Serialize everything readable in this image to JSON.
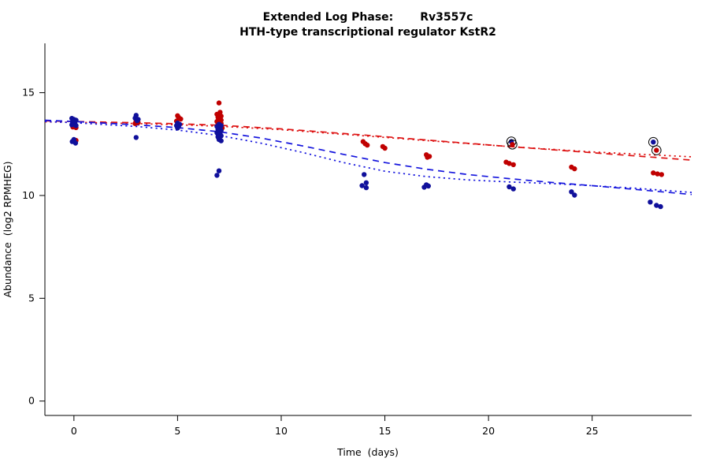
{
  "chart_data": {
    "type": "scatter",
    "title_part1": "Extended Log Phase:",
    "title_part2": "Rv3557c",
    "subtitle": "HTH-type transcriptional regulator KstR2",
    "xlabel": "Time  (days)",
    "ylabel": "Abundance  (log2 RPMHEG)",
    "xlim": [
      -1.4,
      29.8
    ],
    "ylim": [
      -0.7,
      17.4
    ],
    "xticks": [
      0,
      5,
      10,
      15,
      20,
      25
    ],
    "yticks": [
      0,
      5,
      10,
      15
    ],
    "grid": false,
    "legend": "none",
    "point_radius": 3.2,
    "series": [
      {
        "name": "red-condition",
        "color": "#c00000",
        "points": [
          [
            0.0,
            13.45
          ],
          [
            0.05,
            13.38
          ],
          [
            0.1,
            13.3
          ],
          [
            -0.05,
            13.33
          ],
          [
            0.1,
            12.68
          ],
          [
            3.0,
            13.62
          ],
          [
            3.1,
            13.55
          ],
          [
            2.95,
            13.5
          ],
          [
            5.0,
            13.88
          ],
          [
            5.05,
            13.8
          ],
          [
            5.15,
            13.72
          ],
          [
            4.95,
            13.62
          ],
          [
            7.0,
            14.5
          ],
          [
            7.05,
            14.05
          ],
          [
            6.9,
            13.95
          ],
          [
            7.0,
            13.9
          ],
          [
            7.1,
            13.86
          ],
          [
            6.95,
            13.8
          ],
          [
            7.05,
            13.76
          ],
          [
            7.0,
            13.7
          ],
          [
            7.1,
            13.66
          ],
          [
            6.9,
            13.6
          ],
          [
            7.0,
            13.56
          ],
          [
            7.1,
            13.5
          ],
          [
            6.95,
            13.46
          ],
          [
            7.05,
            13.42
          ],
          [
            7.0,
            13.35
          ],
          [
            7.15,
            13.28
          ],
          [
            13.95,
            12.62
          ],
          [
            14.05,
            12.52
          ],
          [
            14.15,
            12.45
          ],
          [
            14.9,
            12.38
          ],
          [
            15.0,
            12.3
          ],
          [
            17.0,
            11.98
          ],
          [
            17.15,
            11.9
          ],
          [
            17.05,
            11.86
          ],
          [
            20.85,
            11.62
          ],
          [
            21.0,
            11.56
          ],
          [
            21.2,
            11.5
          ],
          [
            24.0,
            11.38
          ],
          [
            24.15,
            11.3
          ],
          [
            27.95,
            11.1
          ],
          [
            28.15,
            11.05
          ],
          [
            28.35,
            11.02
          ]
        ]
      },
      {
        "name": "blue-condition",
        "color": "#10109b",
        "points": [
          [
            -0.1,
            13.75
          ],
          [
            0.0,
            13.7
          ],
          [
            0.1,
            13.66
          ],
          [
            -0.05,
            13.6
          ],
          [
            0.05,
            13.55
          ],
          [
            0.0,
            13.5
          ],
          [
            -0.1,
            13.44
          ],
          [
            0.1,
            13.4
          ],
          [
            0.0,
            12.72
          ],
          [
            -0.08,
            12.62
          ],
          [
            0.08,
            12.55
          ],
          [
            3.0,
            13.9
          ],
          [
            2.95,
            13.76
          ],
          [
            3.1,
            13.7
          ],
          [
            3.05,
            13.64
          ],
          [
            3.0,
            12.82
          ],
          [
            5.0,
            13.52
          ],
          [
            5.1,
            13.46
          ],
          [
            4.95,
            13.4
          ],
          [
            5.05,
            13.35
          ],
          [
            5.0,
            13.28
          ],
          [
            7.0,
            13.46
          ],
          [
            7.1,
            13.4
          ],
          [
            6.9,
            13.36
          ],
          [
            7.0,
            13.3
          ],
          [
            7.05,
            13.26
          ],
          [
            6.95,
            13.2
          ],
          [
            7.1,
            13.16
          ],
          [
            7.0,
            13.1
          ],
          [
            6.9,
            13.05
          ],
          [
            7.05,
            13.0
          ],
          [
            7.0,
            12.95
          ],
          [
            7.1,
            12.9
          ],
          [
            6.95,
            12.85
          ],
          [
            7.0,
            12.72
          ],
          [
            7.1,
            12.66
          ],
          [
            7.0,
            11.2
          ],
          [
            6.9,
            10.98
          ],
          [
            14.0,
            11.02
          ],
          [
            14.1,
            10.62
          ],
          [
            13.9,
            10.48
          ],
          [
            14.1,
            10.38
          ],
          [
            17.0,
            10.52
          ],
          [
            17.1,
            10.46
          ],
          [
            16.9,
            10.4
          ],
          [
            21.0,
            10.42
          ],
          [
            21.2,
            10.32
          ],
          [
            24.0,
            10.18
          ],
          [
            24.15,
            10.02
          ],
          [
            27.8,
            9.68
          ],
          [
            28.1,
            9.52
          ],
          [
            28.3,
            9.46
          ]
        ]
      }
    ],
    "outlined_points": [
      {
        "x": 21.1,
        "y": 12.62,
        "color": "#10109b"
      },
      {
        "x": 21.15,
        "y": 12.48,
        "color": "#c00000"
      },
      {
        "x": 27.95,
        "y": 12.6,
        "color": "#10109b"
      },
      {
        "x": 28.1,
        "y": 12.2,
        "color": "#c00000"
      }
    ],
    "trend_lines": [
      {
        "name": "red-dashed",
        "color": "#dd1111",
        "style": "dashed",
        "points": [
          [
            -1.4,
            13.63
          ],
          [
            0,
            13.6
          ],
          [
            3,
            13.54
          ],
          [
            5,
            13.49
          ],
          [
            7,
            13.42
          ],
          [
            10,
            13.24
          ],
          [
            14,
            12.94
          ],
          [
            17,
            12.7
          ],
          [
            21,
            12.38
          ],
          [
            25,
            12.08
          ],
          [
            29.8,
            11.72
          ]
        ]
      },
      {
        "name": "red-dotted",
        "color": "#dd1111",
        "style": "dotted",
        "points": [
          [
            -1.4,
            13.58
          ],
          [
            0,
            13.56
          ],
          [
            3,
            13.5
          ],
          [
            5,
            13.44
          ],
          [
            7,
            13.37
          ],
          [
            10,
            13.2
          ],
          [
            14,
            12.9
          ],
          [
            17,
            12.67
          ],
          [
            21,
            12.38
          ],
          [
            25,
            12.12
          ],
          [
            29.8,
            11.88
          ]
        ]
      },
      {
        "name": "blue-dashed",
        "color": "#1414dd",
        "style": "dashed",
        "points": [
          [
            -1.4,
            13.66
          ],
          [
            0,
            13.6
          ],
          [
            3,
            13.44
          ],
          [
            5,
            13.3
          ],
          [
            7,
            13.1
          ],
          [
            9,
            12.8
          ],
          [
            11,
            12.42
          ],
          [
            13,
            12.0
          ],
          [
            15,
            11.6
          ],
          [
            17,
            11.28
          ],
          [
            19,
            11.02
          ],
          [
            21,
            10.82
          ],
          [
            23,
            10.64
          ],
          [
            25,
            10.48
          ],
          [
            27,
            10.3
          ],
          [
            29.8,
            10.05
          ]
        ]
      },
      {
        "name": "blue-dotted",
        "color": "#1414dd",
        "style": "dotted",
        "points": [
          [
            -1.4,
            13.6
          ],
          [
            0,
            13.54
          ],
          [
            3,
            13.36
          ],
          [
            5,
            13.18
          ],
          [
            7,
            12.92
          ],
          [
            9,
            12.55
          ],
          [
            11,
            12.1
          ],
          [
            13,
            11.6
          ],
          [
            15,
            11.18
          ],
          [
            17,
            10.92
          ],
          [
            19,
            10.76
          ],
          [
            21,
            10.66
          ],
          [
            23,
            10.58
          ],
          [
            25,
            10.48
          ],
          [
            27,
            10.36
          ],
          [
            29.8,
            10.15
          ]
        ]
      }
    ]
  }
}
